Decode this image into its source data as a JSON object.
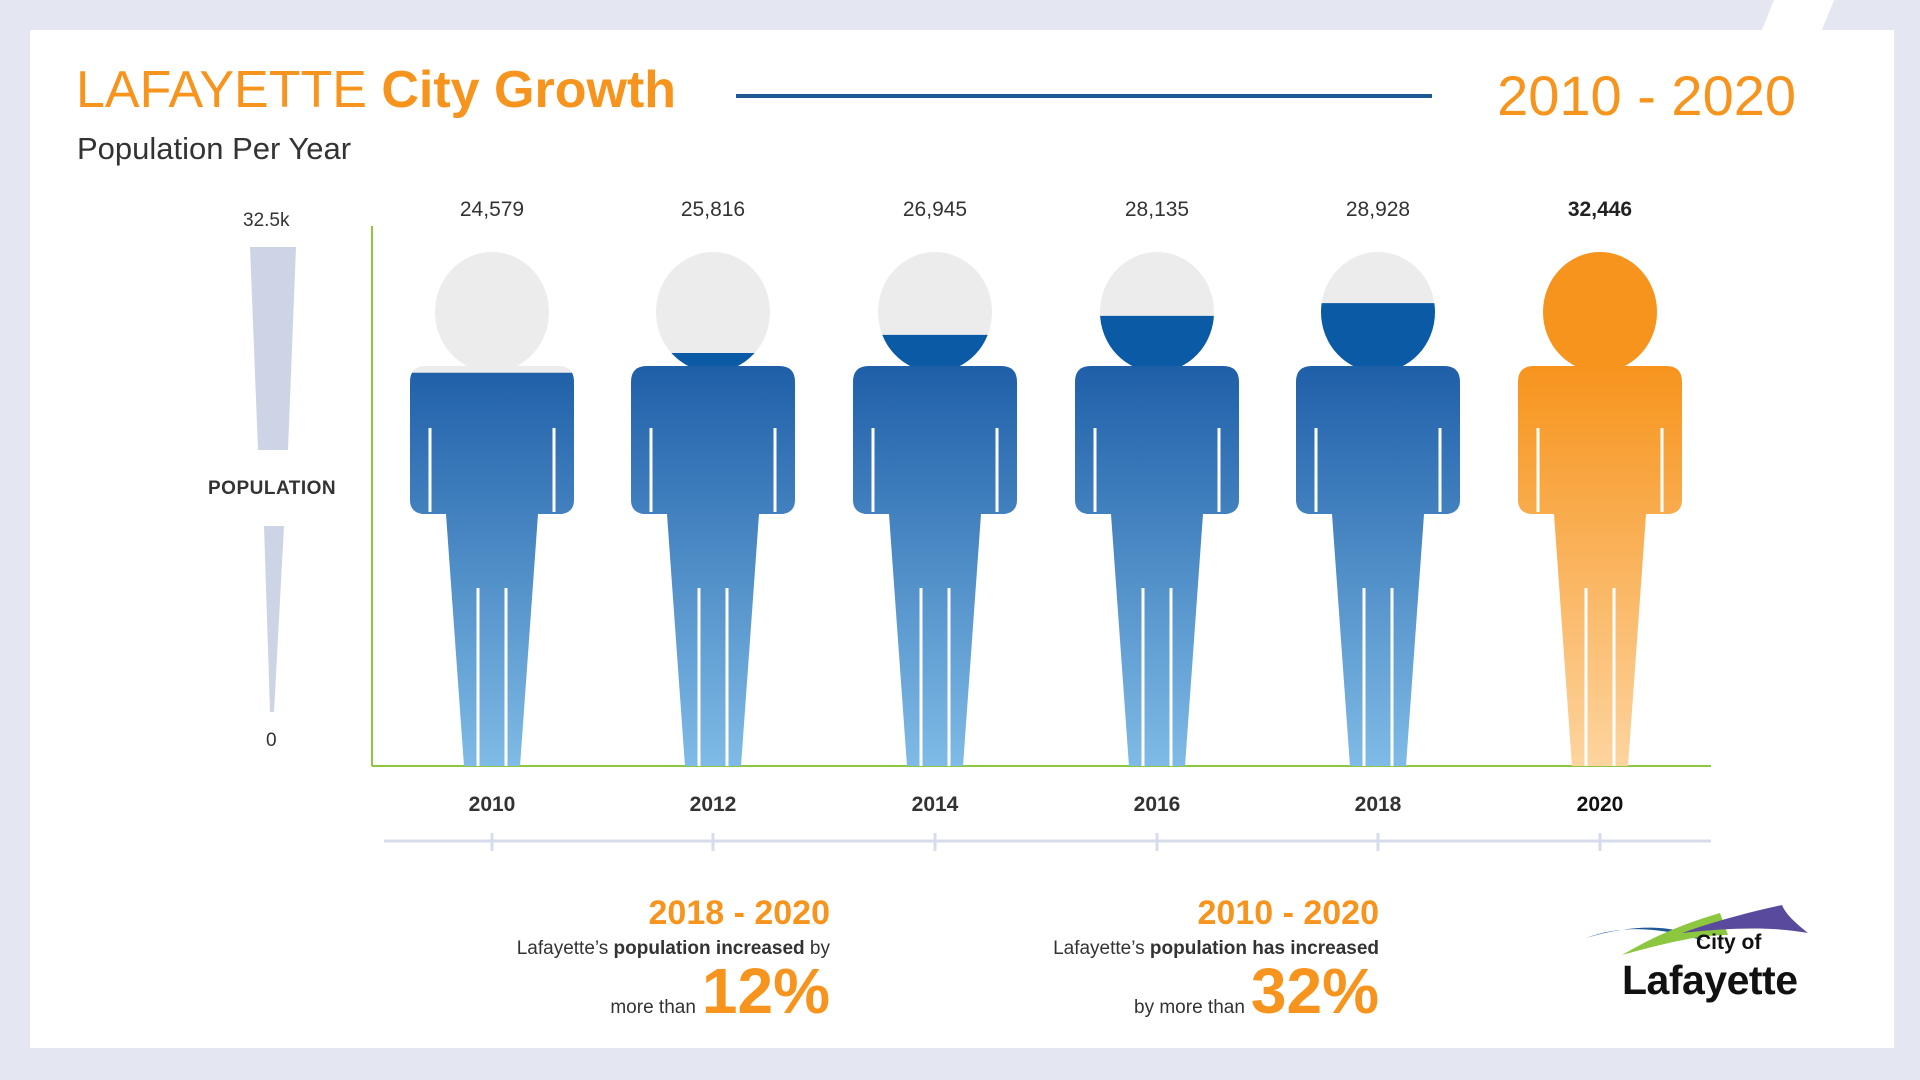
{
  "header": {
    "title_light": "LAFAYETTE ",
    "title_bold": "City Growth",
    "subtitle": "Population Per Year",
    "year_range": "2010 - 2020"
  },
  "axis": {
    "max_label": "32.5k",
    "min_label": "0",
    "label": "POPULATION"
  },
  "chart_data": {
    "type": "bar",
    "categories": [
      "2010",
      "2012",
      "2014",
      "2016",
      "2018",
      "2020"
    ],
    "values": [
      24579,
      25816,
      26945,
      28135,
      28928,
      32446
    ],
    "value_labels": [
      "24,579",
      "25,816",
      "26,945",
      "28,135",
      "28,928",
      "32,446"
    ],
    "highlight_index": 5,
    "title": "Population Per Year",
    "xlabel": "",
    "ylabel": "POPULATION",
    "ylim": [
      0,
      32500
    ],
    "colors": {
      "fill_blue": "#1f5fa8",
      "fill_blue_light": "#7fbbe6",
      "fill_orange": "#f7941d",
      "fill_orange_light": "#fdd49e",
      "empty": "#ececec",
      "axis": "#8dc63f"
    }
  },
  "stats": [
    {
      "range": "2018 - 2020",
      "text_pre": "Lafayette’s ",
      "text_bold": "population increased",
      "text_post": " by",
      "line2": "more than",
      "percent": "12%"
    },
    {
      "range": "2010 - 2020",
      "text_pre": "Lafayette’s ",
      "text_bold": "population has increased",
      "text_post": "",
      "line2": "by more than",
      "percent": "32%"
    }
  ],
  "logo": {
    "line1": "City of",
    "line2": "Lafayette",
    "colors": [
      "#5a4a9e",
      "#8dc63f",
      "#1f5896"
    ]
  }
}
